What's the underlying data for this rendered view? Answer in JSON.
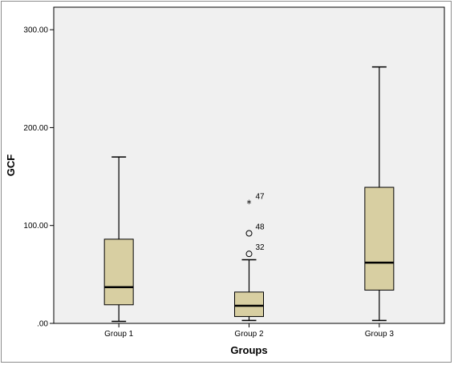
{
  "chart_data": {
    "type": "boxplot",
    "title": "",
    "xlabel": "Groups",
    "ylabel": "GCF",
    "ylim": [
      0,
      323
    ],
    "yticks": [
      0,
      100,
      200,
      300
    ],
    "ytick_labels": [
      ".00",
      "100.00",
      "200.00",
      "300.00"
    ],
    "grid": false,
    "categories": [
      "Group 1",
      "Group 2",
      "Group 3"
    ],
    "boxes": [
      {
        "name": "Group 1",
        "min": 2,
        "q1": 19,
        "median": 37,
        "q3": 86,
        "max": 170,
        "outliers": []
      },
      {
        "name": "Group 2",
        "min": 3,
        "q1": 7,
        "median": 18,
        "q3": 32,
        "max": 65,
        "outliers": [
          {
            "value": 71,
            "label": "32",
            "marker": "circle"
          },
          {
            "value": 92,
            "label": "48",
            "marker": "circle"
          },
          {
            "value": 123,
            "label": "47",
            "marker": "star"
          }
        ]
      },
      {
        "name": "Group 3",
        "min": 3,
        "q1": 34,
        "median": 62,
        "q3": 139,
        "max": 262,
        "outliers": []
      }
    ],
    "colors": {
      "box_fill": "#d8cfa2",
      "plot_bg": "#f0f0f0",
      "line": "#000000",
      "frame": "#8c8c8c"
    }
  }
}
